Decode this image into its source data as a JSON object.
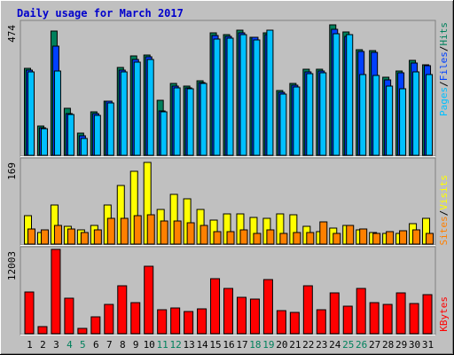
{
  "title": "Daily usage for March 2017",
  "colors": {
    "background": "#c0c0c0",
    "title": "#0000cc",
    "hits": "#00805c",
    "files": "#0040ff",
    "pages": "#00c0ff",
    "visits": "#ffff00",
    "sites": "#ff8000",
    "kbytes": "#ff0000",
    "weekend_label": "#00805c"
  },
  "chart_data": [
    {
      "type": "bar",
      "panel": "hits-files-pages",
      "ymax_label": "474",
      "ylim": [
        0,
        474
      ],
      "legend": {
        "pages": "Pages",
        "files": "Files",
        "hits": "Hits",
        "sep": "/"
      },
      "categories": [
        "1",
        "2",
        "3",
        "4",
        "5",
        "6",
        "7",
        "8",
        "9",
        "10",
        "11",
        "12",
        "13",
        "14",
        "15",
        "16",
        "17",
        "18",
        "19",
        "20",
        "21",
        "22",
        "23",
        "24",
        "25",
        "26",
        "27",
        "28",
        "29",
        "30",
        "31"
      ],
      "weekend_days": [
        "4",
        "5",
        "11",
        "12",
        "18",
        "19",
        "25",
        "26"
      ],
      "series": [
        {
          "name": "Hits",
          "values": [
            312,
            105,
            446,
            168,
            78,
            156,
            195,
            315,
            355,
            358,
            197,
            257,
            248,
            268,
            438,
            432,
            448,
            424,
            440,
            233,
            257,
            308,
            308,
            468,
            442,
            378,
            376,
            280,
            303,
            341,
            326
          ]
        },
        {
          "name": "Files",
          "values": [
            305,
            98,
            392,
            150,
            69,
            150,
            193,
            305,
            342,
            352,
            160,
            247,
            242,
            262,
            428,
            426,
            440,
            422,
            432,
            226,
            250,
            300,
            303,
            452,
            425,
            372,
            370,
            270,
            297,
            330,
            321
          ]
        },
        {
          "name": "Pages",
          "values": [
            298,
            95,
            303,
            146,
            60,
            143,
            188,
            300,
            335,
            345,
            155,
            242,
            237,
            257,
            418,
            420,
            433,
            413,
            448,
            220,
            245,
            292,
            297,
            437,
            433,
            290,
            286,
            247,
            240,
            298,
            291
          ]
        }
      ]
    },
    {
      "type": "bar",
      "panel": "visits-sites",
      "ymax_label": "169",
      "ylim": [
        0,
        169
      ],
      "legend": {
        "sites": "Sites",
        "visits": "Visits",
        "sep": "/"
      },
      "series": [
        {
          "name": "Visits",
          "values": [
            58,
            24,
            80,
            36,
            28,
            38,
            80,
            118,
            148,
            166,
            70,
            100,
            92,
            70,
            48,
            62,
            62,
            54,
            52,
            62,
            60,
            36,
            26,
            32,
            38,
            28,
            24,
            22,
            22,
            42,
            52
          ]
        },
        {
          "name": "Sites",
          "values": [
            30,
            28,
            38,
            31,
            24,
            28,
            52,
            52,
            57,
            59,
            46,
            46,
            44,
            38,
            26,
            25,
            28,
            21,
            28,
            22,
            24,
            23,
            45,
            21,
            38,
            30,
            22,
            25,
            27,
            28,
            22
          ]
        }
      ]
    },
    {
      "type": "bar",
      "panel": "kbytes",
      "ymax_label": "12003",
      "ylim": [
        0,
        12003
      ],
      "legend": {
        "kbytes": "KBytes"
      },
      "series": [
        {
          "name": "KBytes",
          "values": [
            5900,
            1000,
            12003,
            5000,
            700,
            2400,
            4200,
            6800,
            4400,
            9600,
            3400,
            3700,
            3200,
            3500,
            7800,
            6500,
            5200,
            4900,
            7700,
            3300,
            3000,
            6800,
            3400,
            5800,
            3900,
            6500,
            4400,
            4200,
            5800,
            4300,
            5500
          ]
        }
      ]
    }
  ]
}
